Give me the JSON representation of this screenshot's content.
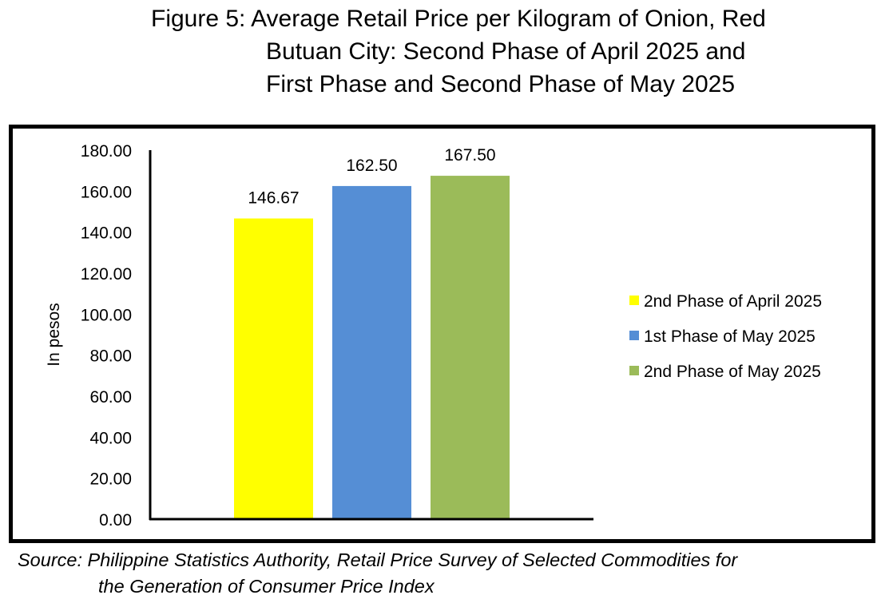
{
  "title_lines": [
    "Figure 5: Average Retail Price per Kilogram of Onion, Red",
    "Butuan City: Second Phase of April 2025 and",
    "First Phase and Second Phase of May 2025"
  ],
  "source_lines": [
    "Source: Philippine Statistics Authority, Retail Price Survey of Selected Commodities for",
    "the Generation of Consumer Price Index"
  ],
  "chart_data": {
    "type": "bar",
    "title": "Figure 5: Average Retail Price per Kilogram of Onion, Red Butuan City: Second Phase of April 2025 and First Phase and Second Phase of May 2025",
    "ylabel": "In pesos",
    "xlabel": "",
    "ylim": [
      0,
      180
    ],
    "yticks": [
      "0.00",
      "20.00",
      "40.00",
      "60.00",
      "80.00",
      "100.00",
      "120.00",
      "140.00",
      "160.00",
      "180.00"
    ],
    "grid": false,
    "legend_position": "right",
    "series": [
      {
        "name": "2nd Phase of April 2025",
        "value": 146.67,
        "label": "146.67",
        "color": "#FFFF00"
      },
      {
        "name": "1st Phase of May 2025",
        "value": 162.5,
        "label": "162.50",
        "color": "#558ED5"
      },
      {
        "name": "2nd Phase of May 2025",
        "value": 167.5,
        "label": "167.50",
        "color": "#9BBB59"
      }
    ]
  }
}
